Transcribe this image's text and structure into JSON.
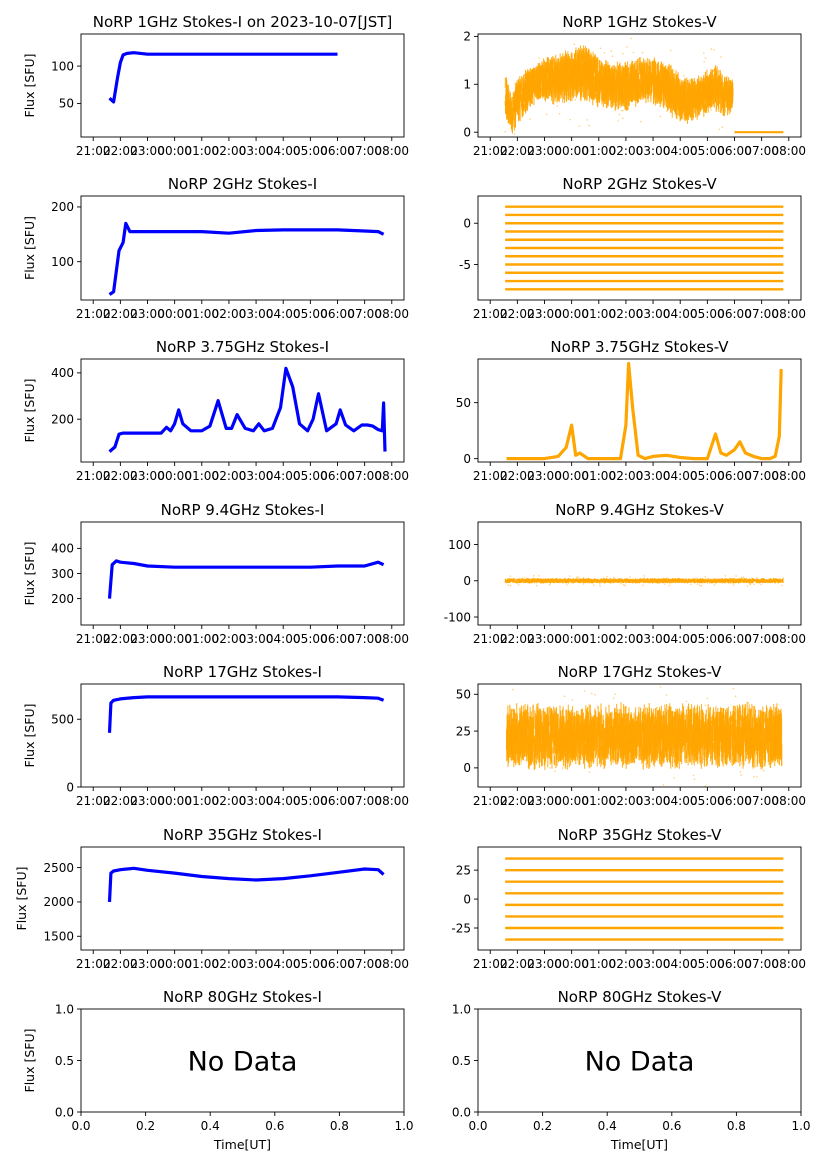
{
  "colors": {
    "stokes_i": "#0000ff",
    "stokes_v": "#ffa500",
    "axes": "#000000",
    "background": "#ffffff"
  },
  "time_ticks": [
    "21:00",
    "22:00",
    "23:00",
    "00:00",
    "01:00",
    "02:00",
    "03:00",
    "04:00",
    "05:00",
    "06:00",
    "07:00",
    "08:00"
  ],
  "chart_data": [
    {
      "type": "scatter",
      "title": "NoRP 1GHz Stokes-I on 2023-10-07[JST]",
      "ylabel": "Flux [SFU]",
      "xlabel": "",
      "ylim": [
        5,
        143
      ],
      "yticks": [
        50,
        100
      ],
      "series": [
        {
          "name": "",
          "color": "#0000ff",
          "band": false,
          "x": [
            21.6,
            21.75,
            21.9,
            22.0,
            22.1,
            22.25,
            22.5,
            23.0,
            24,
            25,
            26,
            27,
            28,
            29,
            30
          ],
          "y": [
            57,
            52,
            85,
            105,
            115,
            117,
            118,
            116,
            116,
            116,
            116,
            116,
            116,
            116,
            116
          ]
        }
      ]
    },
    {
      "type": "scatter",
      "title": "NoRP 1GHz Stokes-V",
      "ylabel": "",
      "xlabel": "",
      "ylim": [
        -0.1,
        2.05
      ],
      "yticks": [
        0,
        1,
        2
      ],
      "series": [
        {
          "name": "",
          "color": "#ffa500",
          "band": true,
          "seed": 11,
          "x": [
            21.55,
            21.8,
            22.0,
            22.5,
            23.0,
            23.5,
            24,
            24.5,
            25,
            25.5,
            26,
            26.5,
            27,
            27.5,
            28,
            28.5,
            28.9,
            29.3,
            29.6,
            29.95
          ],
          "lo": [
            0.3,
            -0.05,
            0.1,
            0.5,
            0.6,
            0.55,
            0.6,
            0.6,
            0.5,
            0.4,
            0.4,
            0.55,
            0.5,
            0.4,
            0.1,
            0.2,
            0.3,
            0.4,
            0.3,
            0.4
          ],
          "hi": [
            1.3,
            0.8,
            1.2,
            1.4,
            1.6,
            1.7,
            1.8,
            1.9,
            1.6,
            1.5,
            1.5,
            1.6,
            1.6,
            1.5,
            1.3,
            1.2,
            1.3,
            1.5,
            1.2,
            1.2
          ]
        },
        {
          "name": "",
          "color": "#ffa500",
          "band": false,
          "width": 2.2,
          "x": [
            30.0,
            31.8
          ],
          "y": [
            0,
            0
          ]
        }
      ]
    },
    {
      "type": "scatter",
      "title": "NoRP 2GHz Stokes-I",
      "ylabel": "Flux [SFU]",
      "xlabel": "",
      "ylim": [
        30,
        220
      ],
      "yticks": [
        100,
        200
      ],
      "series": [
        {
          "name": "",
          "color": "#0000ff",
          "band": false,
          "x": [
            21.6,
            21.75,
            21.95,
            22.1,
            22.2,
            22.35,
            22.5,
            23,
            24,
            25,
            26,
            27,
            28,
            29,
            30,
            31,
            31.5,
            31.7
          ],
          "y": [
            40,
            45,
            120,
            135,
            170,
            155,
            155,
            155,
            155,
            155,
            152,
            157,
            158,
            158,
            158,
            156,
            155,
            150
          ]
        }
      ]
    },
    {
      "type": "scatter",
      "title": "NoRP 2GHz Stokes-V",
      "ylabel": "",
      "xlabel": "",
      "ylim": [
        -9.3,
        3.3
      ],
      "yticks": [
        -5,
        0
      ],
      "series": [
        {
          "name": "",
          "color": "#ffa500",
          "band": false,
          "lines": [
            2,
            1,
            0,
            -1,
            -2,
            -3,
            -4,
            -5,
            -6,
            -7,
            -8
          ],
          "x": [
            21.55,
            31.8
          ],
          "y": [
            0,
            0
          ]
        }
      ]
    },
    {
      "type": "scatter",
      "title": "NoRP 3.75GHz Stokes-I",
      "ylabel": "Flux [SFU]",
      "xlabel": "",
      "ylim": [
        15,
        460
      ],
      "yticks": [
        200,
        400
      ],
      "series": [
        {
          "name": "",
          "color": "#0000ff",
          "band": false,
          "x": [
            21.6,
            21.8,
            21.95,
            22.1,
            22.3,
            22.6,
            23,
            23.5,
            23.7,
            23.85,
            24.0,
            24.15,
            24.3,
            24.6,
            25,
            25.3,
            25.6,
            25.9,
            26.1,
            26.3,
            26.6,
            26.9,
            27.1,
            27.3,
            27.6,
            27.9,
            28.1,
            28.35,
            28.6,
            28.9,
            29.1,
            29.3,
            29.6,
            29.95,
            30.1,
            30.3,
            30.6,
            30.9,
            31.1,
            31.3,
            31.5,
            31.65,
            31.7,
            31.75
          ],
          "y": [
            60,
            80,
            135,
            140,
            140,
            140,
            140,
            140,
            165,
            150,
            180,
            240,
            180,
            150,
            150,
            170,
            280,
            160,
            160,
            220,
            160,
            150,
            180,
            150,
            160,
            250,
            420,
            340,
            180,
            150,
            200,
            310,
            150,
            180,
            240,
            175,
            150,
            175,
            175,
            170,
            155,
            150,
            270,
            60
          ]
        }
      ]
    },
    {
      "type": "scatter",
      "title": "NoRP 3.75GHz Stokes-V",
      "ylabel": "",
      "xlabel": "",
      "ylim": [
        -3,
        89
      ],
      "yticks": [
        0,
        50
      ],
      "series": [
        {
          "name": "",
          "color": "#ffa500",
          "band": false,
          "x": [
            21.6,
            22.0,
            22.5,
            23.0,
            23.5,
            23.8,
            24.0,
            24.15,
            24.3,
            24.6,
            25,
            25.5,
            25.8,
            26.0,
            26.1,
            26.25,
            26.45,
            26.7,
            27,
            27.5,
            28,
            28.5,
            29,
            29.3,
            29.5,
            29.7,
            30,
            30.2,
            30.4,
            30.7,
            31,
            31.3,
            31.5,
            31.65,
            31.72
          ],
          "y": [
            0,
            0,
            0,
            0,
            2,
            10,
            30,
            3,
            5,
            0,
            0,
            0,
            0,
            30,
            85,
            45,
            3,
            0,
            2,
            3,
            1,
            0,
            0,
            22,
            5,
            3,
            8,
            15,
            5,
            2,
            0,
            0,
            2,
            20,
            80
          ]
        }
      ]
    },
    {
      "type": "scatter",
      "title": "NoRP 9.4GHz Stokes-I",
      "ylabel": "Flux [SFU]",
      "xlabel": "",
      "ylim": [
        95,
        505
      ],
      "yticks": [
        200,
        300,
        400
      ],
      "series": [
        {
          "name": "",
          "color": "#0000ff",
          "band": false,
          "x": [
            21.6,
            21.7,
            21.85,
            22.0,
            22.5,
            23,
            24,
            25,
            26,
            27,
            28,
            29,
            30,
            31,
            31.5,
            31.7
          ],
          "y": [
            200,
            335,
            350,
            345,
            340,
            330,
            325,
            325,
            325,
            325,
            325,
            325,
            330,
            330,
            345,
            335
          ]
        }
      ]
    },
    {
      "type": "scatter",
      "title": "NoRP 9.4GHz Stokes-V",
      "ylabel": "",
      "xlabel": "",
      "ylim": [
        -122,
        162
      ],
      "yticks": [
        -100,
        0,
        100
      ],
      "series": [
        {
          "name": "",
          "color": "#ffa500",
          "band": true,
          "seed": 23,
          "x": [
            21.55,
            31.8
          ],
          "lo": [
            -8,
            -8
          ],
          "hi": [
            8,
            8
          ]
        }
      ]
    },
    {
      "type": "scatter",
      "title": "NoRP 17GHz Stokes-I",
      "ylabel": "Flux [SFU]",
      "xlabel": "",
      "ylim": [
        0,
        760
      ],
      "yticks": [
        0,
        500
      ],
      "series": [
        {
          "name": "",
          "color": "#0000ff",
          "band": false,
          "x": [
            21.6,
            21.65,
            21.75,
            22.0,
            22.5,
            23,
            24,
            25,
            26,
            27,
            28,
            29,
            30,
            31,
            31.5,
            31.7
          ],
          "y": [
            400,
            620,
            640,
            650,
            660,
            665,
            665,
            665,
            665,
            665,
            665,
            665,
            665,
            660,
            655,
            640
          ]
        }
      ]
    },
    {
      "type": "scatter",
      "title": "NoRP 17GHz Stokes-V",
      "ylabel": "",
      "xlabel": "",
      "ylim": [
        -13,
        57
      ],
      "yticks": [
        0,
        25,
        50
      ],
      "series": [
        {
          "name": "",
          "color": "#ffa500",
          "band": true,
          "seed": 37,
          "x": [
            21.6,
            31.75
          ],
          "lo": [
            -2,
            -2
          ],
          "hi": [
            45,
            45
          ]
        }
      ]
    },
    {
      "type": "scatter",
      "title": "NoRP 35GHz Stokes-I",
      "ylabel": "Flux [SFU]",
      "xlabel": "",
      "ylim": [
        1300,
        2800
      ],
      "yticks": [
        1500,
        2000,
        2500
      ],
      "series": [
        {
          "name": "",
          "color": "#0000ff",
          "band": false,
          "x": [
            21.6,
            21.65,
            21.75,
            22,
            22.5,
            23,
            24,
            25,
            26,
            27,
            28,
            29,
            30,
            31,
            31.5,
            31.7
          ],
          "y": [
            2000,
            2420,
            2450,
            2470,
            2490,
            2460,
            2420,
            2370,
            2340,
            2320,
            2340,
            2380,
            2430,
            2480,
            2470,
            2400
          ]
        }
      ]
    },
    {
      "type": "scatter",
      "title": "NoRP 35GHz Stokes-V",
      "ylabel": "",
      "xlabel": "",
      "ylim": [
        -44,
        45
      ],
      "yticks": [
        -25,
        0,
        25
      ],
      "series": [
        {
          "name": "",
          "color": "#ffa500",
          "band": false,
          "lines": [
            35,
            25,
            15,
            5,
            -5,
            -15,
            -25,
            -35
          ],
          "x": [
            21.55,
            31.8
          ],
          "y": [
            0,
            0
          ]
        }
      ]
    },
    {
      "type": "scatter",
      "title": "NoRP 80GHz Stokes-I",
      "ylabel": "Flux [SFU]",
      "xlabel": "Time[UT]",
      "ylim": [
        0,
        1
      ],
      "yticks": [
        0.0,
        0.5,
        1.0
      ],
      "annotation": "No Data",
      "series": []
    },
    {
      "type": "scatter",
      "title": "NoRP 80GHz Stokes-V",
      "ylabel": "",
      "xlabel": "Time[UT]",
      "ylim": [
        0,
        1
      ],
      "yticks": [
        0.0,
        0.5,
        1.0
      ],
      "annotation": "No Data",
      "series": []
    }
  ],
  "numeric_xticks": [
    "0.0",
    "0.2",
    "0.4",
    "0.6",
    "0.8",
    "1.0"
  ]
}
